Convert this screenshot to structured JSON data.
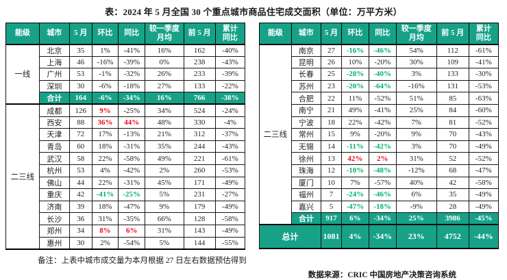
{
  "title": "表：2024 年 5 月全国 30 个重点城市商品住宅成交面积（单位：万平方米）",
  "colors": {
    "teal": "#17a288",
    "red": "#ee0a18",
    "green": "#00b26a"
  },
  "columns": [
    "能级",
    "城市",
    "5 月",
    "环比",
    "同比",
    "较一季度|月均",
    "前 5 月",
    "累计|同比"
  ],
  "left_table": {
    "tier1": {
      "label": "一线",
      "rows": [
        {
          "city": "北京",
          "v": [
            "35",
            "1%",
            "-41%",
            "16%",
            "162",
            "-40%"
          ],
          "mom": "",
          "yoy": ""
        },
        {
          "city": "上海",
          "v": [
            "46",
            "-16%",
            "-39%",
            "0%",
            "238",
            "-43%"
          ],
          "mom": "",
          "yoy": ""
        },
        {
          "city": "广州",
          "v": [
            "53",
            "-1%",
            "-32%",
            "26%",
            "233",
            "-39%"
          ],
          "mom": "",
          "yoy": ""
        },
        {
          "city": "深圳",
          "v": [
            "30",
            "-6%",
            "-18%",
            "27%",
            "133",
            "-22%"
          ],
          "mom": "",
          "yoy": ""
        }
      ],
      "total": {
        "label": "合计",
        "v": [
          "164",
          "-6%",
          "-34%",
          "16%",
          "766",
          "-38%"
        ]
      }
    },
    "tier2": {
      "label": "二三线",
      "rows": [
        {
          "city": "成都",
          "v": [
            "126",
            "9%",
            "-25%",
            "34%",
            "524",
            "-24%"
          ],
          "mom": "red",
          "yoy": ""
        },
        {
          "city": "西安",
          "v": [
            "88",
            "36%",
            "44%",
            "48%",
            "330",
            "-4%"
          ],
          "mom": "red",
          "yoy": "red"
        },
        {
          "city": "天津",
          "v": [
            "72",
            "17%",
            "-13%",
            "21%",
            "312",
            "-37%"
          ],
          "mom": "",
          "yoy": ""
        },
        {
          "city": "青岛",
          "v": [
            "60",
            "18%",
            "-31%",
            "35%",
            "244",
            "-43%"
          ],
          "mom": "",
          "yoy": ""
        },
        {
          "city": "武汉",
          "v": [
            "58",
            "22%",
            "-58%",
            "49%",
            "221",
            "-61%"
          ],
          "mom": "",
          "yoy": ""
        },
        {
          "city": "杭州",
          "v": [
            "53",
            "4%",
            "-42%",
            "2%",
            "260",
            "-53%"
          ],
          "mom": "",
          "yoy": ""
        },
        {
          "city": "佛山",
          "v": [
            "44",
            "22%",
            "-31%",
            "45%",
            "171",
            "-49%"
          ],
          "mom": "",
          "yoy": ""
        },
        {
          "city": "重庆",
          "v": [
            "42",
            "-41%",
            "-25%",
            "5%",
            "231",
            "-27%"
          ],
          "mom": "green",
          "yoy": "green"
        },
        {
          "city": "济南",
          "v": [
            "39",
            "18%",
            "-47%",
            "9%",
            "179",
            "-49%"
          ],
          "mom": "",
          "yoy": ""
        },
        {
          "city": "长沙",
          "v": [
            "36",
            "31%",
            "-35%",
            "66%",
            "128",
            "-58%"
          ],
          "mom": "",
          "yoy": ""
        },
        {
          "city": "郑州",
          "v": [
            "34",
            "8%",
            "6%",
            "31%",
            "143",
            "-49%"
          ],
          "mom": "red",
          "yoy": "red"
        },
        {
          "city": "惠州",
          "v": [
            "30",
            "2%",
            "-54%",
            "5%",
            "144",
            "-55%"
          ],
          "mom": "",
          "yoy": ""
        }
      ]
    }
  },
  "right_table": {
    "tier_label": "二三线",
    "rows": [
      {
        "city": "南京",
        "v": [
          "27",
          "-16%",
          "-46%",
          "54%",
          "112",
          "-61%"
        ],
        "mom": "green",
        "yoy": "green"
      },
      {
        "city": "昆明",
        "v": [
          "26",
          "10%",
          "-20%",
          "30%",
          "109",
          "-41%"
        ],
        "mom": "",
        "yoy": ""
      },
      {
        "city": "长春",
        "v": [
          "25",
          "-28%",
          "-40%",
          "3%",
          "133",
          "-30%"
        ],
        "mom": "green",
        "yoy": "green"
      },
      {
        "city": "苏州",
        "v": [
          "23",
          "-20%",
          "-64%",
          "-16%",
          "131",
          "-53%"
        ],
        "mom": "green",
        "yoy": "green"
      },
      {
        "city": "合肥",
        "v": [
          "22",
          "11%",
          "-52%",
          "51%",
          "85",
          "-63%"
        ],
        "mom": "",
        "yoy": ""
      },
      {
        "city": "南宁",
        "v": [
          "21",
          "49%",
          "-41%",
          "25%",
          "84",
          "-60%"
        ],
        "mom": "",
        "yoy": ""
      },
      {
        "city": "宁波",
        "v": [
          "18",
          "22%",
          "-42%",
          "7%",
          "81",
          "-52%"
        ],
        "mom": "",
        "yoy": ""
      },
      {
        "city": "常州",
        "v": [
          "15",
          "9%",
          "-20%",
          "9%",
          "70",
          "-43%"
        ],
        "mom": "",
        "yoy": ""
      },
      {
        "city": "无锡",
        "v": [
          "14",
          "-11%",
          "-42%",
          "3%",
          "70",
          "-49%"
        ],
        "mom": "green",
        "yoy": "green"
      },
      {
        "city": "徐州",
        "v": [
          "13",
          "42%",
          "2%",
          "31%",
          "52",
          "-52%"
        ],
        "mom": "red",
        "yoy": "red"
      },
      {
        "city": "珠海",
        "v": [
          "12",
          "-10%",
          "-48%",
          "-12%",
          "68",
          "-47%"
        ],
        "mom": "green",
        "yoy": "green"
      },
      {
        "city": "厦门",
        "v": [
          "10",
          "7%",
          "-57%",
          "40%",
          "42",
          "-58%"
        ],
        "mom": "",
        "yoy": ""
      },
      {
        "city": "福州",
        "v": [
          "7",
          "-24%",
          "-46%",
          "6%",
          "35",
          "-49%"
        ],
        "mom": "green",
        "yoy": "green"
      },
      {
        "city": "嘉兴",
        "v": [
          "5",
          "-47%",
          "-18%",
          "-9%",
          "28",
          "-49%"
        ],
        "mom": "green",
        "yoy": "green"
      }
    ],
    "total": {
      "label": "合计",
      "v": [
        "917",
        "6%",
        "-34%",
        "25%",
        "3986",
        "-45%"
      ]
    },
    "grand_total": {
      "label": "总计",
      "v": [
        "1081",
        "4%",
        "-34%",
        "23%",
        "4752",
        "-44%"
      ]
    }
  },
  "notes": {
    "remark": "备注：上表中城市成交量为本月根据 27 日左右数据预估得到",
    "source": "数据来源：CRIC 中国房地产决策咨询系统"
  }
}
